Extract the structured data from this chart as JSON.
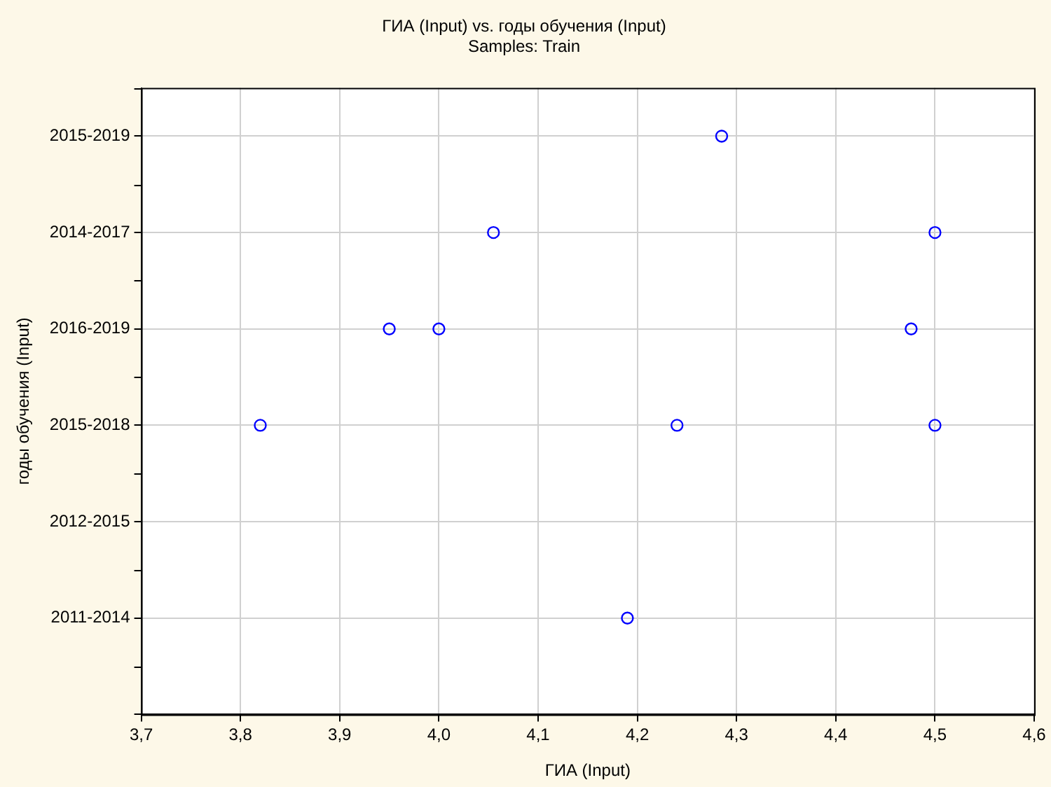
{
  "chart_data": {
    "type": "scatter",
    "orientation": "horizontal",
    "title": "ГИА (Input) vs. годы обучения (Input)",
    "subtitle": "Samples: Train",
    "xlabel": "ГИА (Input)",
    "ylabel": "годы обучения (Input)",
    "categories": [
      "2015-2019",
      "2014-2017",
      "2016-2019",
      "2015-2018",
      "2012-2015",
      "2011-2014",
      null
    ],
    "series": [
      {
        "color": "#0000ff",
        "values": [
          4.285,
          4.055,
          3.95,
          3.82,
          null,
          4.19,
          null
        ]
      },
      {
        "color": "#0000ff",
        "values": [
          null,
          4.5,
          4.0,
          4.24,
          null,
          null,
          null
        ]
      },
      {
        "color": "#0000ff",
        "values": [
          null,
          null,
          4.476,
          4.5,
          null,
          null,
          null
        ]
      }
    ],
    "xlim": [
      3.7,
      4.6
    ],
    "xticks": [
      {
        "value": 3.7,
        "label": "3,7"
      },
      {
        "value": 3.8,
        "label": "3,8"
      },
      {
        "value": 3.9,
        "label": "3,9"
      },
      {
        "value": 4.0,
        "label": "4,0"
      },
      {
        "value": 4.1,
        "label": "4,1"
      },
      {
        "value": 4.2,
        "label": "4,2"
      },
      {
        "value": 4.3,
        "label": "4,3"
      },
      {
        "value": 4.4,
        "label": "4,4"
      },
      {
        "value": 4.5,
        "label": "4,5"
      },
      {
        "value": 4.6,
        "label": "4,6"
      }
    ],
    "grid": true,
    "marker": "circle",
    "legend": false
  }
}
